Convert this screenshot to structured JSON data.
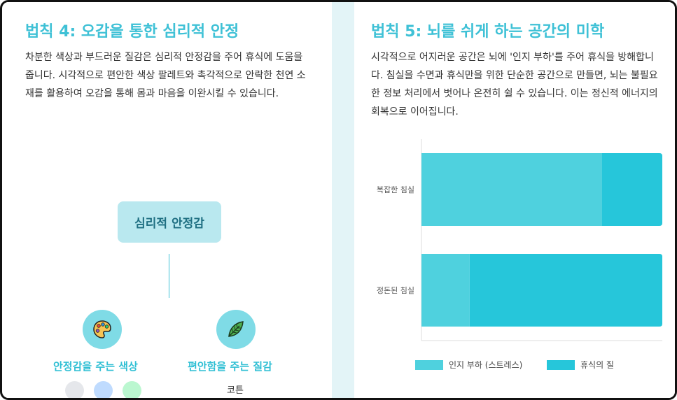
{
  "law4": {
    "title": "법칙 4: 오감을 통한 심리적 안정",
    "body": "차분한 색상과 부드러운 질감은 심리적 안정감을 주어 휴식에 도움을 줍니다. 시각적으로 편안한 색상 팔레트와 촉각적으로 안락한 천연 소재를 활용하여 오감을 통해 몸과 마음을 이완시킬 수 있습니다.",
    "diagram": {
      "center": "심리적 안정감",
      "color_node": {
        "label": "안정감을 주는 색상",
        "icon": "palette-icon",
        "swatches": [
          "#e5e7eb",
          "#bfdbfe",
          "#bbf7d0"
        ]
      },
      "texture_node": {
        "label": "편안함을 주는 질감",
        "icon": "leaf-icon",
        "item": "코튼"
      }
    }
  },
  "law5": {
    "title": "법칙 5: 뇌를 쉬게 하는 공간의 미학",
    "body": "시각적으로 어지러운 공간은 뇌에 '인지 부하'를 주어 휴식을 방해합니다. 침실을 수면과 휴식만을 위한 단순한 공간으로 만들면, 뇌는 불필요한 정보 처리에서 벗어나 온전히 쉴 수 있습니다. 이는 정신적 에너지의 회복으로 이어집니다."
  },
  "chart_data": {
    "type": "bar",
    "orientation": "horizontal",
    "stacked": true,
    "categories": [
      "복잡한 침실",
      "정돈된 침실"
    ],
    "series": [
      {
        "name": "인지 부하 (스트레스)",
        "values": [
          75,
          20
        ],
        "color": "#4fd1de"
      },
      {
        "name": "휴식의 질",
        "values": [
          25,
          80
        ],
        "color": "#26c6da"
      }
    ],
    "xlim": [
      0,
      100
    ],
    "grid": false,
    "legend_position": "bottom"
  }
}
